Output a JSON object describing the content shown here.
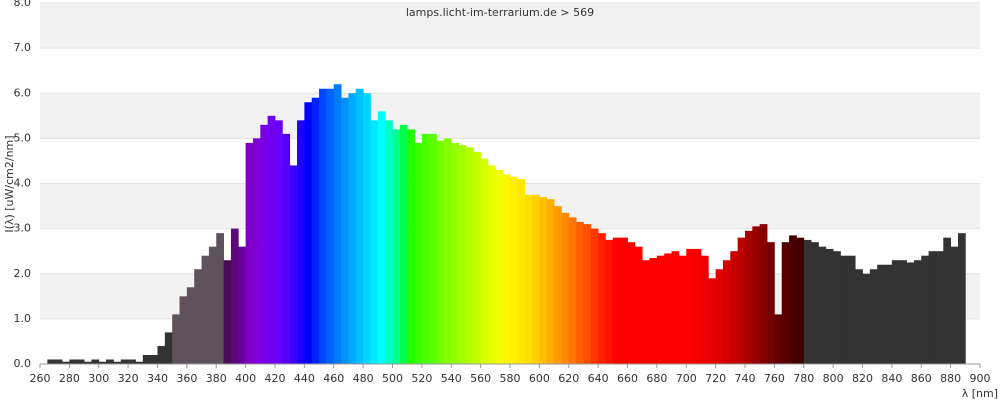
{
  "chart_data": {
    "type": "bar",
    "title": "lamps.licht-im-terrarium.de > 569",
    "ylabel": "I(λ)  [uW/cm2/nm]",
    "xlabel": "λ [nm]",
    "x": [
      260,
      265,
      270,
      275,
      280,
      285,
      290,
      295,
      300,
      305,
      310,
      315,
      320,
      325,
      330,
      335,
      340,
      345,
      350,
      355,
      360,
      365,
      370,
      375,
      380,
      385,
      390,
      395,
      400,
      405,
      410,
      415,
      420,
      425,
      430,
      435,
      440,
      445,
      450,
      455,
      460,
      465,
      470,
      475,
      480,
      485,
      490,
      495,
      500,
      505,
      510,
      515,
      520,
      525,
      530,
      535,
      540,
      545,
      550,
      555,
      560,
      565,
      570,
      575,
      580,
      585,
      590,
      595,
      600,
      605,
      610,
      615,
      620,
      625,
      630,
      635,
      640,
      645,
      650,
      655,
      660,
      665,
      670,
      675,
      680,
      685,
      690,
      695,
      700,
      705,
      710,
      715,
      720,
      725,
      730,
      735,
      740,
      745,
      750,
      755,
      760,
      765,
      770,
      775,
      780,
      785,
      790,
      795,
      800,
      805,
      810,
      815,
      820,
      825,
      830,
      835,
      840,
      845,
      850,
      855,
      860,
      865,
      870,
      875,
      880,
      885
    ],
    "values": [
      0,
      0.1,
      0.1,
      0.05,
      0.1,
      0.1,
      0.05,
      0.1,
      0.05,
      0.1,
      0.05,
      0.1,
      0.1,
      0.05,
      0.2,
      0.2,
      0.4,
      0.7,
      1.1,
      1.5,
      1.7,
      2.1,
      2.4,
      2.6,
      2.9,
      2.3,
      3.0,
      2.6,
      4.9,
      5.0,
      5.3,
      5.5,
      5.4,
      5.1,
      4.4,
      5.4,
      5.8,
      5.9,
      6.1,
      6.1,
      6.2,
      5.9,
      6.0,
      6.1,
      6.0,
      5.4,
      5.6,
      5.4,
      5.2,
      5.3,
      5.2,
      4.9,
      5.1,
      5.1,
      4.95,
      5.0,
      4.9,
      4.85,
      4.8,
      4.7,
      4.55,
      4.4,
      4.3,
      4.2,
      4.15,
      4.1,
      3.75,
      3.75,
      3.7,
      3.65,
      3.5,
      3.35,
      3.25,
      3.15,
      3.1,
      3.0,
      2.9,
      2.75,
      2.8,
      2.8,
      2.7,
      2.6,
      2.3,
      2.35,
      2.4,
      2.45,
      2.5,
      2.4,
      2.55,
      2.55,
      2.4,
      1.9,
      2.1,
      2.3,
      2.5,
      2.8,
      2.95,
      3.05,
      3.1,
      2.7,
      1.1,
      2.7,
      2.85,
      2.8,
      2.75,
      2.7,
      2.6,
      2.55,
      2.5,
      2.4,
      2.4,
      2.1,
      2.0,
      2.1,
      2.2,
      2.2,
      2.3,
      2.3,
      2.25,
      2.3,
      2.4,
      2.5,
      2.5,
      2.8,
      2.6,
      2.9
    ],
    "colors": [
      "#333333",
      "#333333",
      "#333333",
      "#333333",
      "#333333",
      "#333333",
      "#333333",
      "#333333",
      "#333333",
      "#333333",
      "#333333",
      "#333333",
      "#333333",
      "#333333",
      "#333333",
      "#333333",
      "#333333",
      "#333333",
      "#5f525c",
      "#5f525c",
      "#5f525c",
      "#5f525c",
      "#5f525c",
      "#5f525c",
      "#5f525c",
      "#4a0d55",
      "#5a0a78",
      "#6a00a0",
      "#7f00c8",
      "#8000d8",
      "#7a00e6",
      "#7000f2",
      "#6a00ff",
      "#5400ff",
      "#3d00ff",
      "#1f00ff",
      "#0000ff",
      "#0022ff",
      "#0046ff",
      "#0062ff",
      "#007bff",
      "#0092ff",
      "#00a9ff",
      "#00c0ff",
      "#00d5ff",
      "#00eaff",
      "#00ffff",
      "#00ffc8",
      "#00ff92",
      "#00ff4a",
      "#1fff00",
      "#36ff00",
      "#4aff00",
      "#5eff00",
      "#70ff00",
      "#83ff00",
      "#94ff00",
      "#a3ff00",
      "#b3ff00",
      "#c4ff00",
      "#d6ff00",
      "#e3ff00",
      "#f0ff00",
      "#fff700",
      "#ffef00",
      "#ffe700",
      "#ffdf00",
      "#ffcf00",
      "#ffbe00",
      "#ffad00",
      "#ff9b00",
      "#ff8900",
      "#ff7700",
      "#ff6300",
      "#ff4f00",
      "#ff3800",
      "#ff2100",
      "#ff1000",
      "#ff0000",
      "#ff0000",
      "#ff0000",
      "#ff0000",
      "#ff0000",
      "#ff0000",
      "#ff0000",
      "#ff0000",
      "#ff0000",
      "#ff0000",
      "#ff0000",
      "#f80000",
      "#f00000",
      "#e80000",
      "#e00000",
      "#d40000",
      "#c80000",
      "#b80000",
      "#a80000",
      "#960000",
      "#840000",
      "#720000",
      "#620000",
      "#540000",
      "#4a0000",
      "#400000",
      "#333333",
      "#333333",
      "#333333",
      "#333333",
      "#333333",
      "#333333",
      "#333333",
      "#333333",
      "#333333",
      "#333333",
      "#333333",
      "#333333",
      "#333333",
      "#333333",
      "#333333",
      "#333333",
      "#333333",
      "#333333",
      "#333333",
      "#333333",
      "#333333",
      "#333333"
    ],
    "xlim": [
      260,
      900
    ],
    "ylim": [
      0,
      8
    ],
    "xticks": [
      260,
      280,
      300,
      320,
      340,
      360,
      380,
      400,
      420,
      440,
      460,
      480,
      500,
      520,
      540,
      560,
      580,
      600,
      620,
      640,
      660,
      680,
      700,
      720,
      740,
      760,
      780,
      800,
      820,
      840,
      860,
      880,
      900
    ],
    "yticks": [
      {
        "value": 0,
        "label": "0.0"
      },
      {
        "value": 1,
        "label": "1.0"
      },
      {
        "value": 2,
        "label": "2.0"
      },
      {
        "value": 3,
        "label": "3.0"
      },
      {
        "value": 4,
        "label": "4.0"
      },
      {
        "value": 5,
        "label": "5.0"
      },
      {
        "value": 6,
        "label": "6.0"
      },
      {
        "value": 7,
        "label": "7.0"
      },
      {
        "value": 8,
        "label": "8.0"
      }
    ],
    "grid": true
  }
}
